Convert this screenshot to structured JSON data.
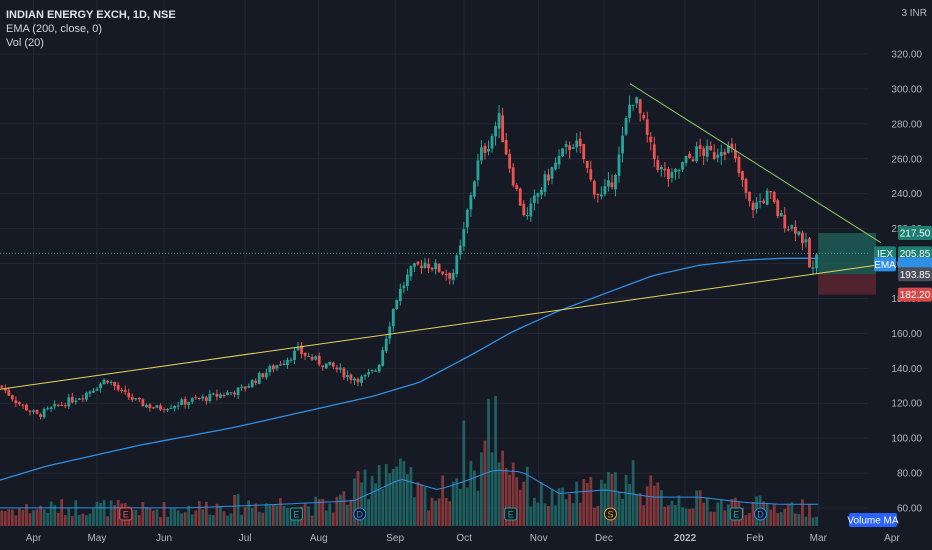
{
  "legend": {
    "symbol": "INDIAN ENERGY EXCH, 1D, NSE",
    "ema": "EMA (200, close, 0)",
    "vol": "Vol (20)"
  },
  "currency": "INR",
  "currency_prefix": "3",
  "volume_ma_label": "Volume MA",
  "colors": {
    "background": "#161a25",
    "grid": "#232733",
    "up": "#26a69a",
    "down": "#ef5350",
    "ema": "#2f8fe6",
    "trend_lower": "#e6d25a",
    "trend_upper": "#8ecf63",
    "target_zone": "#1f5f58",
    "stop_zone": "#5c2630"
  },
  "chart_data": {
    "type": "candlestick",
    "title": "INDIAN ENERGY EXCH, 1D, NSE",
    "ylim": [
      52,
      328
    ],
    "y_ticks": [
      60,
      80,
      100,
      120,
      140,
      160,
      180,
      200,
      220,
      240,
      260,
      280,
      300,
      320
    ],
    "y_tick_labels": [
      "60.00",
      "80.00",
      "100.00",
      "120.00",
      "140.00",
      "160.00",
      "180.00",
      "200.00",
      "220.00",
      "240.00",
      "260.00",
      "280.00",
      "300.00",
      "320.00"
    ],
    "x_labels": [
      {
        "label": "Apr",
        "t": 0.036
      },
      {
        "label": "May",
        "t": 0.104
      },
      {
        "label": "Jun",
        "t": 0.176
      },
      {
        "label": "Jul",
        "t": 0.263
      },
      {
        "label": "Aug",
        "t": 0.342
      },
      {
        "label": "Sep",
        "t": 0.424
      },
      {
        "label": "Oct",
        "t": 0.498
      },
      {
        "label": "Nov",
        "t": 0.578
      },
      {
        "label": "Dec",
        "t": 0.648
      },
      {
        "label": "2022",
        "t": 0.735
      },
      {
        "label": "Feb",
        "t": 0.81
      },
      {
        "label": "Mar",
        "t": 0.878
      },
      {
        "label": "Apr",
        "t": 0.957
      }
    ],
    "price_path": [
      [
        0.0,
        130
      ],
      [
        0.02,
        120
      ],
      [
        0.04,
        113
      ],
      [
        0.06,
        118
      ],
      [
        0.09,
        125
      ],
      [
        0.115,
        134
      ],
      [
        0.13,
        126
      ],
      [
        0.15,
        120
      ],
      [
        0.17,
        117
      ],
      [
        0.2,
        121
      ],
      [
        0.23,
        124
      ],
      [
        0.26,
        128
      ],
      [
        0.28,
        136
      ],
      [
        0.3,
        143
      ],
      [
        0.32,
        150
      ],
      [
        0.34,
        144
      ],
      [
        0.36,
        140
      ],
      [
        0.375,
        135
      ],
      [
        0.39,
        134
      ],
      [
        0.405,
        140
      ],
      [
        0.415,
        160
      ],
      [
        0.425,
        180
      ],
      [
        0.44,
        195
      ],
      [
        0.455,
        201
      ],
      [
        0.47,
        197
      ],
      [
        0.485,
        193
      ],
      [
        0.495,
        210
      ],
      [
        0.505,
        240
      ],
      [
        0.515,
        262
      ],
      [
        0.525,
        270
      ],
      [
        0.535,
        283
      ],
      [
        0.545,
        260
      ],
      [
        0.555,
        240
      ],
      [
        0.565,
        225
      ],
      [
        0.575,
        238
      ],
      [
        0.59,
        252
      ],
      [
        0.6,
        260
      ],
      [
        0.615,
        270
      ],
      [
        0.625,
        262
      ],
      [
        0.635,
        245
      ],
      [
        0.645,
        238
      ],
      [
        0.655,
        245
      ],
      [
        0.665,
        262
      ],
      [
        0.675,
        290
      ],
      [
        0.68,
        296
      ],
      [
        0.69,
        280
      ],
      [
        0.7,
        262
      ],
      [
        0.71,
        253
      ],
      [
        0.72,
        248
      ],
      [
        0.735,
        258
      ],
      [
        0.75,
        265
      ],
      [
        0.765,
        262
      ],
      [
        0.775,
        268
      ],
      [
        0.785,
        264
      ],
      [
        0.795,
        248
      ],
      [
        0.805,
        232
      ],
      [
        0.815,
        235
      ],
      [
        0.825,
        240
      ],
      [
        0.835,
        228
      ],
      [
        0.845,
        222
      ],
      [
        0.855,
        220
      ],
      [
        0.865,
        210
      ],
      [
        0.87,
        193
      ],
      [
        0.878,
        205.85
      ]
    ],
    "ema_path": [
      [
        0.0,
        76
      ],
      [
        0.05,
        84
      ],
      [
        0.1,
        90
      ],
      [
        0.15,
        96
      ],
      [
        0.2,
        101
      ],
      [
        0.25,
        106
      ],
      [
        0.3,
        112
      ],
      [
        0.35,
        118
      ],
      [
        0.4,
        124
      ],
      [
        0.45,
        132
      ],
      [
        0.5,
        146
      ],
      [
        0.55,
        161
      ],
      [
        0.6,
        173
      ],
      [
        0.65,
        183
      ],
      [
        0.7,
        193
      ],
      [
        0.75,
        199
      ],
      [
        0.8,
        202
      ],
      [
        0.84,
        203
      ],
      [
        0.878,
        203
      ]
    ],
    "trendlines": [
      {
        "name": "lower",
        "from": [
          0.0,
          128
        ],
        "to": [
          0.94,
          199
        ]
      },
      {
        "name": "upper",
        "from": [
          0.676,
          303
        ],
        "to": [
          0.945,
          212
        ]
      }
    ],
    "volume_path": [
      [
        0.0,
        1.0
      ],
      [
        0.05,
        1.1
      ],
      [
        0.1,
        1.2
      ],
      [
        0.15,
        1.0
      ],
      [
        0.2,
        1.1
      ],
      [
        0.25,
        1.3
      ],
      [
        0.3,
        1.4
      ],
      [
        0.35,
        1.2
      ],
      [
        0.38,
        2.0
      ],
      [
        0.41,
        4.0
      ],
      [
        0.43,
        3.0
      ],
      [
        0.45,
        2.0
      ],
      [
        0.47,
        1.8
      ],
      [
        0.49,
        3.2
      ],
      [
        0.5,
        4.8
      ],
      [
        0.51,
        2.8
      ],
      [
        0.53,
        7.2
      ],
      [
        0.54,
        4.6
      ],
      [
        0.555,
        3.4
      ],
      [
        0.57,
        2.1
      ],
      [
        0.6,
        1.6
      ],
      [
        0.65,
        2.4
      ],
      [
        0.68,
        3.1
      ],
      [
        0.7,
        2.0
      ],
      [
        0.75,
        1.5
      ],
      [
        0.8,
        1.3
      ],
      [
        0.85,
        1.2
      ],
      [
        0.878,
        1.0
      ]
    ],
    "volume_ma_path": [
      [
        0.0,
        1.0
      ],
      [
        0.1,
        1.0
      ],
      [
        0.2,
        1.0
      ],
      [
        0.3,
        1.2
      ],
      [
        0.38,
        1.4
      ],
      [
        0.43,
        2.6
      ],
      [
        0.47,
        2.0
      ],
      [
        0.5,
        2.5
      ],
      [
        0.53,
        3.1
      ],
      [
        0.56,
        3.0
      ],
      [
        0.6,
        1.8
      ],
      [
        0.65,
        2.0
      ],
      [
        0.7,
        1.6
      ],
      [
        0.75,
        1.6
      ],
      [
        0.8,
        1.3
      ],
      [
        0.84,
        1.2
      ],
      [
        0.878,
        1.2
      ]
    ],
    "volume_max": 7.2,
    "event_markers": [
      {
        "letter": "E",
        "t": 0.135,
        "kind": "earnings-down"
      },
      {
        "letter": "E",
        "t": 0.318,
        "kind": "earnings-up"
      },
      {
        "letter": "D",
        "t": 0.386,
        "kind": "dividend"
      },
      {
        "letter": "E",
        "t": 0.548,
        "kind": "earnings-up"
      },
      {
        "letter": "S",
        "t": 0.655,
        "kind": "split"
      },
      {
        "letter": "E",
        "t": 0.79,
        "kind": "earnings-up"
      },
      {
        "letter": "D",
        "t": 0.816,
        "kind": "dividend"
      }
    ],
    "price_tags": [
      {
        "text": "217.50",
        "value": 217.5,
        "color": "#1d7f72",
        "name": "target-price-tag"
      },
      {
        "text": "205.85",
        "value": 205.85,
        "color": "#1d7f72",
        "name": "last-price-tag",
        "prefix": "IEX"
      },
      {
        "text": "EMA",
        "value": 199.5,
        "color": "#2f8fe6",
        "name": "ema-tag",
        "prefix": "EMA"
      },
      {
        "text": "193.85",
        "value": 193.85,
        "color": "#4a4e5a",
        "name": "entry-price-tag"
      },
      {
        "text": "182.20",
        "value": 182.2,
        "color": "#d84a4a",
        "name": "stop-price-tag"
      }
    ],
    "position_zone": {
      "t_start": 0.878,
      "t_end": 0.94,
      "target": 217.5,
      "entry": 193.85,
      "stop": 182.2
    }
  }
}
